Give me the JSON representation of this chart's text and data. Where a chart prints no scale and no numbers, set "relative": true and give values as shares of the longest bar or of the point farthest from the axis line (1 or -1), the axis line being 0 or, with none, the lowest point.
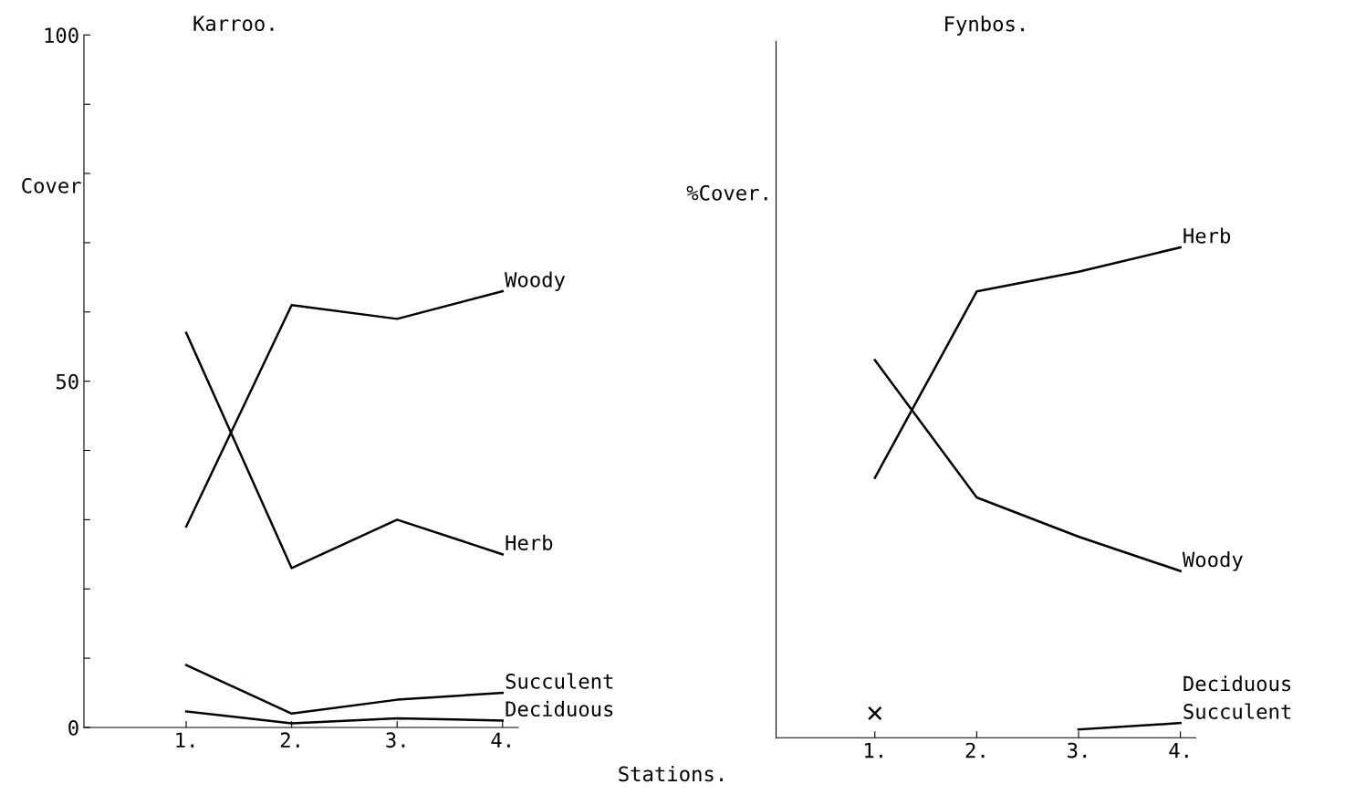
{
  "chart_data": [
    {
      "type": "line",
      "title": "Karroo.",
      "ylabel": "Cover",
      "xlabel": "Stations.",
      "categories": [
        "1.",
        "2.",
        "3.",
        "4."
      ],
      "series": [
        {
          "name": "Woody",
          "color": "#000000",
          "values": [
            29,
            61,
            59,
            63
          ]
        },
        {
          "name": "Herb",
          "color": "#000000",
          "values": [
            57,
            23,
            30,
            25
          ]
        },
        {
          "name": "Succulent",
          "color": "#000000",
          "values": [
            9,
            2,
            4,
            5
          ]
        },
        {
          "name": "Deciduous",
          "color": "#000000",
          "values": [
            2.3,
            0.6,
            1.3,
            1.0
          ]
        }
      ],
      "ylim": [
        0,
        100
      ],
      "yticks": [
        0,
        {
          "value": 10,
          "label": null
        },
        {
          "value": 20,
          "label": null
        },
        {
          "value": 30,
          "label": null
        },
        {
          "value": 40,
          "label": null
        },
        50,
        {
          "value": 60,
          "label": null
        },
        {
          "value": 70,
          "label": null
        },
        {
          "value": 80,
          "label": null
        },
        {
          "value": 90,
          "label": null
        },
        100
      ],
      "grid": false,
      "legend": false,
      "marker": "none",
      "line_style": "solid"
    },
    {
      "type": "line",
      "title": "Fynbos.",
      "ylabel": "%Cover.",
      "categories": [
        "1.",
        "2.",
        "3.",
        "4."
      ],
      "relative": true,
      "tick_labels": "x",
      "series": [
        {
          "name": "Herb",
          "color": "#000000",
          "values": [
            0.53,
            0.91,
            0.95,
            1
          ]
        },
        {
          "name": "Woody",
          "color": "#000000",
          "values": [
            0.77,
            0.49,
            0.41,
            0.34
          ]
        },
        {
          "name": "Deciduous",
          "color": "#000000",
          "type": "scatter",
          "marker": "cross",
          "values": [
            0.05,
            null,
            null,
            null
          ]
        },
        {
          "name": "Succulent",
          "color": "#000000",
          "values": [
            null,
            null,
            0.017,
            0.03
          ]
        }
      ],
      "grid": false,
      "legend": false,
      "marker": "none",
      "line_style": "solid"
    }
  ]
}
